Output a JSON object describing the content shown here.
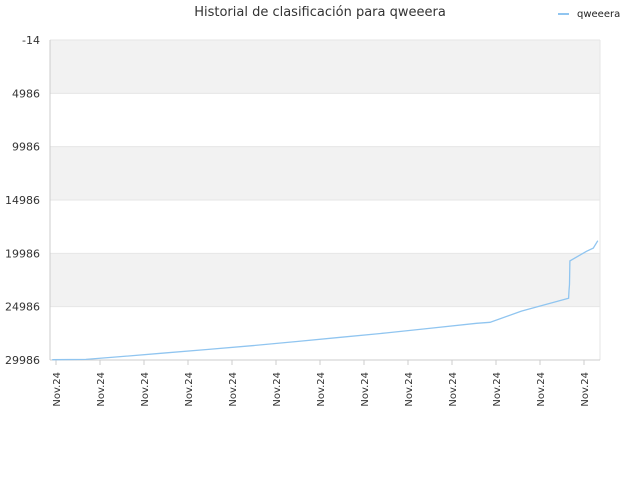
{
  "chart_data": {
    "type": "line",
    "title": "Historial de clasificación para qweeera",
    "xlabel": "",
    "ylabel": "",
    "y_inverted": true,
    "ylim": [
      -14,
      29986
    ],
    "y_ticks": [
      "-14",
      "4986",
      "9986",
      "14986",
      "19986",
      "24986",
      "29986"
    ],
    "x_ticks": [
      "Nov.24",
      "Nov.24",
      "Nov.24",
      "Nov.24",
      "Nov.24",
      "Nov.24",
      "Nov.24",
      "Nov.24",
      "Nov.24",
      "Nov.24",
      "Nov.24",
      "Nov.24",
      "Nov.24"
    ],
    "x_range": [
      0,
      12.25
    ],
    "legend": {
      "position": "top-right"
    },
    "grid": true,
    "series": [
      {
        "name": "qweeera",
        "color": "#90c5f0",
        "points": [
          [
            0.05,
            29960
          ],
          [
            0.8,
            29930
          ],
          [
            1.5,
            29700
          ],
          [
            2.5,
            29350
          ],
          [
            3.5,
            29000
          ],
          [
            4.5,
            28650
          ],
          [
            5.5,
            28250
          ],
          [
            6.5,
            27850
          ],
          [
            7.5,
            27450
          ],
          [
            8.5,
            27000
          ],
          [
            9.5,
            26550
          ],
          [
            9.8,
            26450
          ],
          [
            10.5,
            25400
          ],
          [
            11.55,
            24200
          ],
          [
            11.56,
            23500
          ],
          [
            11.57,
            22900
          ],
          [
            11.58,
            20700
          ],
          [
            11.95,
            19800
          ],
          [
            12.1,
            19500
          ],
          [
            12.2,
            18800
          ]
        ]
      }
    ],
    "colors": {
      "band": "#f2f2f2",
      "grid": "#e6e6e6",
      "axis": "#cccccc"
    }
  }
}
